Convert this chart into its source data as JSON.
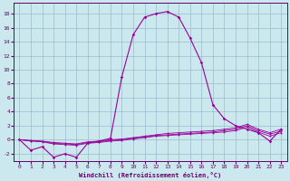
{
  "xlabel": "Windchill (Refroidissement éolien,°C)",
  "background_color": "#cce8ef",
  "grid_color": "#99bbcc",
  "line_color": "#990099",
  "xlim": [
    -0.5,
    23.5
  ],
  "ylim": [
    -3,
    19.5
  ],
  "xticks": [
    0,
    1,
    2,
    3,
    4,
    5,
    6,
    7,
    8,
    9,
    10,
    11,
    12,
    13,
    14,
    15,
    16,
    17,
    18,
    19,
    20,
    21,
    22,
    23
  ],
  "yticks": [
    -2,
    0,
    2,
    4,
    6,
    8,
    10,
    12,
    14,
    16,
    18
  ],
  "series1_x": [
    0,
    1,
    2,
    3,
    4,
    5,
    6,
    7,
    8,
    9,
    10,
    11,
    12,
    13,
    14,
    15,
    16,
    17,
    18,
    19,
    20,
    21,
    22,
    23
  ],
  "series1_y": [
    0,
    -1.5,
    -1.0,
    -2.5,
    -2.0,
    -2.5,
    -0.5,
    -0.2,
    0.2,
    9.0,
    15.0,
    17.5,
    18.0,
    18.3,
    17.5,
    14.5,
    11.0,
    5.0,
    3.0,
    2.0,
    1.5,
    1.0,
    -0.2,
    1.5
  ],
  "series2_x": [
    0,
    1,
    2,
    3,
    4,
    5,
    6,
    7,
    8,
    9,
    10,
    11,
    12,
    13,
    14,
    15,
    16,
    17,
    18,
    19,
    20,
    21,
    22,
    23
  ],
  "series2_y": [
    0,
    -0.1,
    -0.2,
    -0.4,
    -0.5,
    -0.6,
    -0.3,
    -0.2,
    0.0,
    0.1,
    0.3,
    0.5,
    0.7,
    0.9,
    1.0,
    1.1,
    1.2,
    1.3,
    1.5,
    1.7,
    2.2,
    1.5,
    1.0,
    1.5
  ],
  "series3_x": [
    0,
    1,
    2,
    3,
    4,
    5,
    6,
    7,
    8,
    9,
    10,
    11,
    12,
    13,
    14,
    15,
    16,
    17,
    18,
    19,
    20,
    21,
    22,
    23
  ],
  "series3_y": [
    0,
    -0.15,
    -0.25,
    -0.5,
    -0.6,
    -0.7,
    -0.4,
    -0.3,
    -0.1,
    0.0,
    0.2,
    0.4,
    0.6,
    0.7,
    0.8,
    0.9,
    1.0,
    1.1,
    1.3,
    1.5,
    2.0,
    1.3,
    0.8,
    1.2
  ],
  "series4_x": [
    0,
    1,
    2,
    3,
    4,
    5,
    6,
    7,
    8,
    9,
    10,
    11,
    12,
    13,
    14,
    15,
    16,
    17,
    18,
    19,
    20,
    21,
    22,
    23
  ],
  "series4_y": [
    0,
    -0.2,
    -0.3,
    -0.6,
    -0.7,
    -0.8,
    -0.5,
    -0.4,
    -0.2,
    -0.1,
    0.1,
    0.3,
    0.5,
    0.6,
    0.7,
    0.8,
    0.9,
    1.0,
    1.1,
    1.3,
    1.8,
    1.1,
    0.5,
    1.0
  ]
}
